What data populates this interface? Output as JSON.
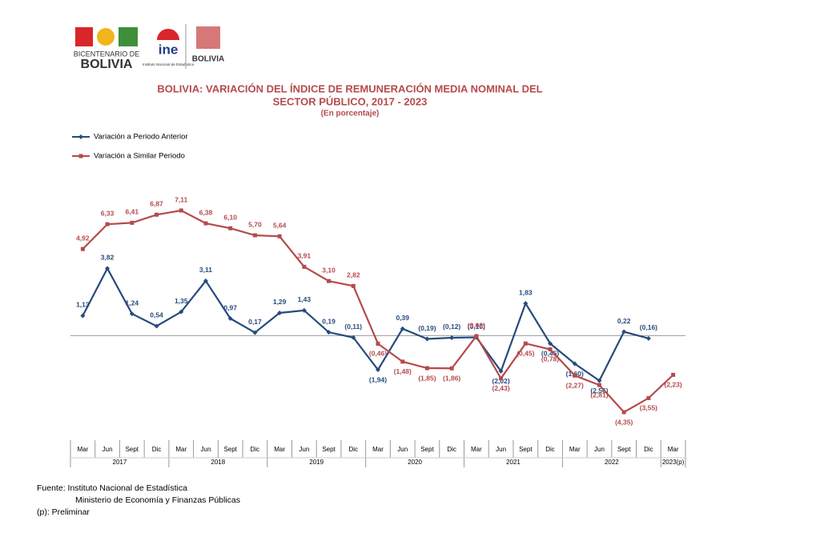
{
  "header": {
    "bicentenario": "BICENTENARIO DE",
    "bolivia": "BOLIVIA",
    "ine": "ine",
    "ine_name": "Instituto Nacional de Estadística",
    "ministerio": "BOLIVIA"
  },
  "chart_data": {
    "type": "line",
    "title": [
      "BOLIVIA: VARIACIÓN DEL ÍNDICE DE REMUNERACIÓN MEDIA NOMINAL DEL",
      "SECTOR PÚBLICO,  2017 - 2023"
    ],
    "subtitle": "(En porcentaje)",
    "categories": [
      "Mar",
      "Jun",
      "Sept",
      "Dic",
      "Mar",
      "Jun",
      "Sept",
      "Dic",
      "Mar",
      "Jun",
      "Sept",
      "Dic",
      "Mar",
      "Jun",
      "Sept",
      "Dic",
      "Mar",
      "Jun",
      "Sept",
      "Dic",
      "Mar",
      "Jun",
      "Sept",
      "Dic",
      "Mar"
    ],
    "years": [
      "2017",
      "2018",
      "2019",
      "2020",
      "2021",
      "2022",
      "2023(p)"
    ],
    "series": [
      {
        "name": "Variación a Periodo Anterior",
        "color": "#264b7e",
        "marker": "diamond",
        "values": [
          1.13,
          3.82,
          1.24,
          0.54,
          1.35,
          3.11,
          0.97,
          0.17,
          1.29,
          1.43,
          0.19,
          -0.11,
          -1.94,
          0.39,
          -0.19,
          -0.12,
          -0.1,
          -2.02,
          1.83,
          -0.45,
          -1.6,
          -2.56,
          0.22,
          -0.16,
          null
        ],
        "value_labels": [
          "1,13",
          "3,82",
          "1,24",
          "0,54",
          "1,35",
          "3,11",
          "0,97",
          "0,17",
          "1,29",
          "1,43",
          "0,19",
          "(0,11)",
          "(1,94)",
          "0,39",
          "(0,19)",
          "(0,12)",
          "(0,10)",
          "(2,02)",
          "1,83",
          "(0,45)",
          "(1,60)",
          "(2,56)",
          "0,22",
          "(0,16)",
          null
        ]
      },
      {
        "name": "Variación a Similar Periodo",
        "color": "#b54a4c",
        "marker": "square",
        "values": [
          4.92,
          6.33,
          6.41,
          6.87,
          7.11,
          6.38,
          6.1,
          5.7,
          5.64,
          3.91,
          3.1,
          2.82,
          -0.46,
          -1.48,
          -1.85,
          -1.86,
          -0.03,
          -2.43,
          -0.45,
          -0.78,
          -2.27,
          -2.81,
          -4.35,
          -3.55,
          -2.23
        ],
        "value_labels": [
          "4,92",
          "6,33",
          "6,41",
          "6,87",
          "7,11",
          "6,38",
          "6,10",
          "5,70",
          "5,64",
          "3,91",
          "3,10",
          "2,82",
          "(0,46)",
          "(1,48)",
          "(1,85)",
          "(1,86)",
          "(0,03)",
          "(2,43)",
          "(0,45)",
          "(0,78)",
          "(2,27)",
          "(2,81)",
          "(4,35)",
          "(3,55)",
          "(2,23)"
        ]
      }
    ],
    "footer": [
      "Fuente: Instituto Nacional de Estadística",
      "Ministerio de Economía y Finanzas Públicas",
      "(p): Preliminar"
    ]
  }
}
